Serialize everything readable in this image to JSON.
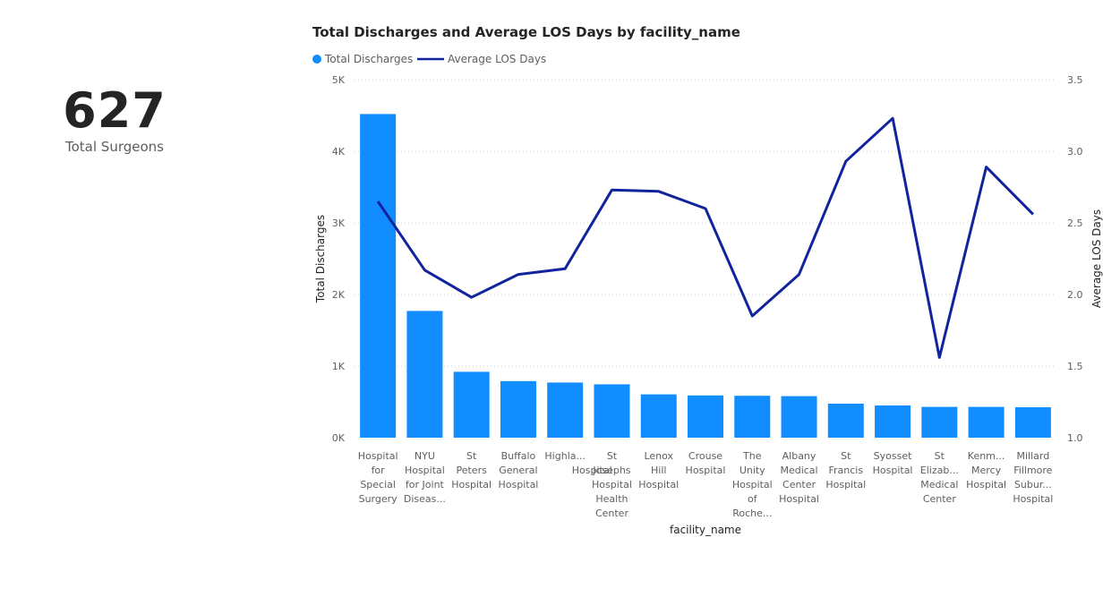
{
  "kpi": {
    "value": "627",
    "label": "Total Surgeons"
  },
  "chart_data": {
    "type": "bar",
    "combo": "bar+line",
    "title": "Total Discharges and Average LOS Days by facility_name",
    "xlabel": "facility_name",
    "ylabel": "Total Discharges",
    "y2label": "Average LOS Days",
    "legend_position": "top-left",
    "grid": true,
    "ylim": [
      0,
      5000
    ],
    "y2lim": [
      1.0,
      3.5
    ],
    "y_ticks": [
      "0K",
      "1K",
      "2K",
      "3K",
      "4K",
      "5K"
    ],
    "y2_ticks": [
      "1.0",
      "1.5",
      "2.0",
      "2.5",
      "3.0",
      "3.5"
    ],
    "categories": [
      [
        "Hospital",
        "for",
        "Special",
        "Surgery"
      ],
      [
        "NYU",
        "Hospital",
        "for Joint",
        "Diseas..."
      ],
      [
        "St",
        "Peters",
        "Hospital"
      ],
      [
        "Buffalo",
        "General",
        "Hospital"
      ],
      [
        "Highla..."
      ],
      [
        "St",
        "Josephs",
        "Hospital",
        "Health",
        "Center"
      ],
      [
        "Lenox",
        "Hill",
        "Hospital"
      ],
      [
        "Crouse",
        "Hospital"
      ],
      [
        "The",
        "Unity",
        "Hospital",
        "of",
        "Roche..."
      ],
      [
        "Albany",
        "Medical",
        "Center",
        "Hospital"
      ],
      [
        "St",
        "Francis",
        "Hospital"
      ],
      [
        "Syosset",
        "Hospital"
      ],
      [
        "St",
        "Elizab...",
        "Medical",
        "Center"
      ],
      [
        "Kenm...",
        "Mercy",
        "Hospital"
      ],
      [
        "Millard",
        "Fillmore",
        "Subur...",
        "Hospital"
      ]
    ],
    "cat_wrap_offset": {
      "Highla...": [
        "Hospital"
      ]
    },
    "series": [
      {
        "name": "Total Discharges",
        "type": "bar",
        "color": "#118dff",
        "values": [
          4520,
          1770,
          920,
          790,
          770,
          745,
          605,
          590,
          585,
          580,
          475,
          450,
          430,
          430,
          425
        ]
      },
      {
        "name": "Average LOS Days",
        "type": "line",
        "color": "#12239e",
        "values": [
          2.65,
          2.17,
          1.98,
          2.14,
          2.18,
          2.73,
          2.72,
          2.6,
          1.85,
          2.14,
          2.93,
          3.23,
          1.56,
          2.89,
          2.56
        ]
      }
    ]
  }
}
